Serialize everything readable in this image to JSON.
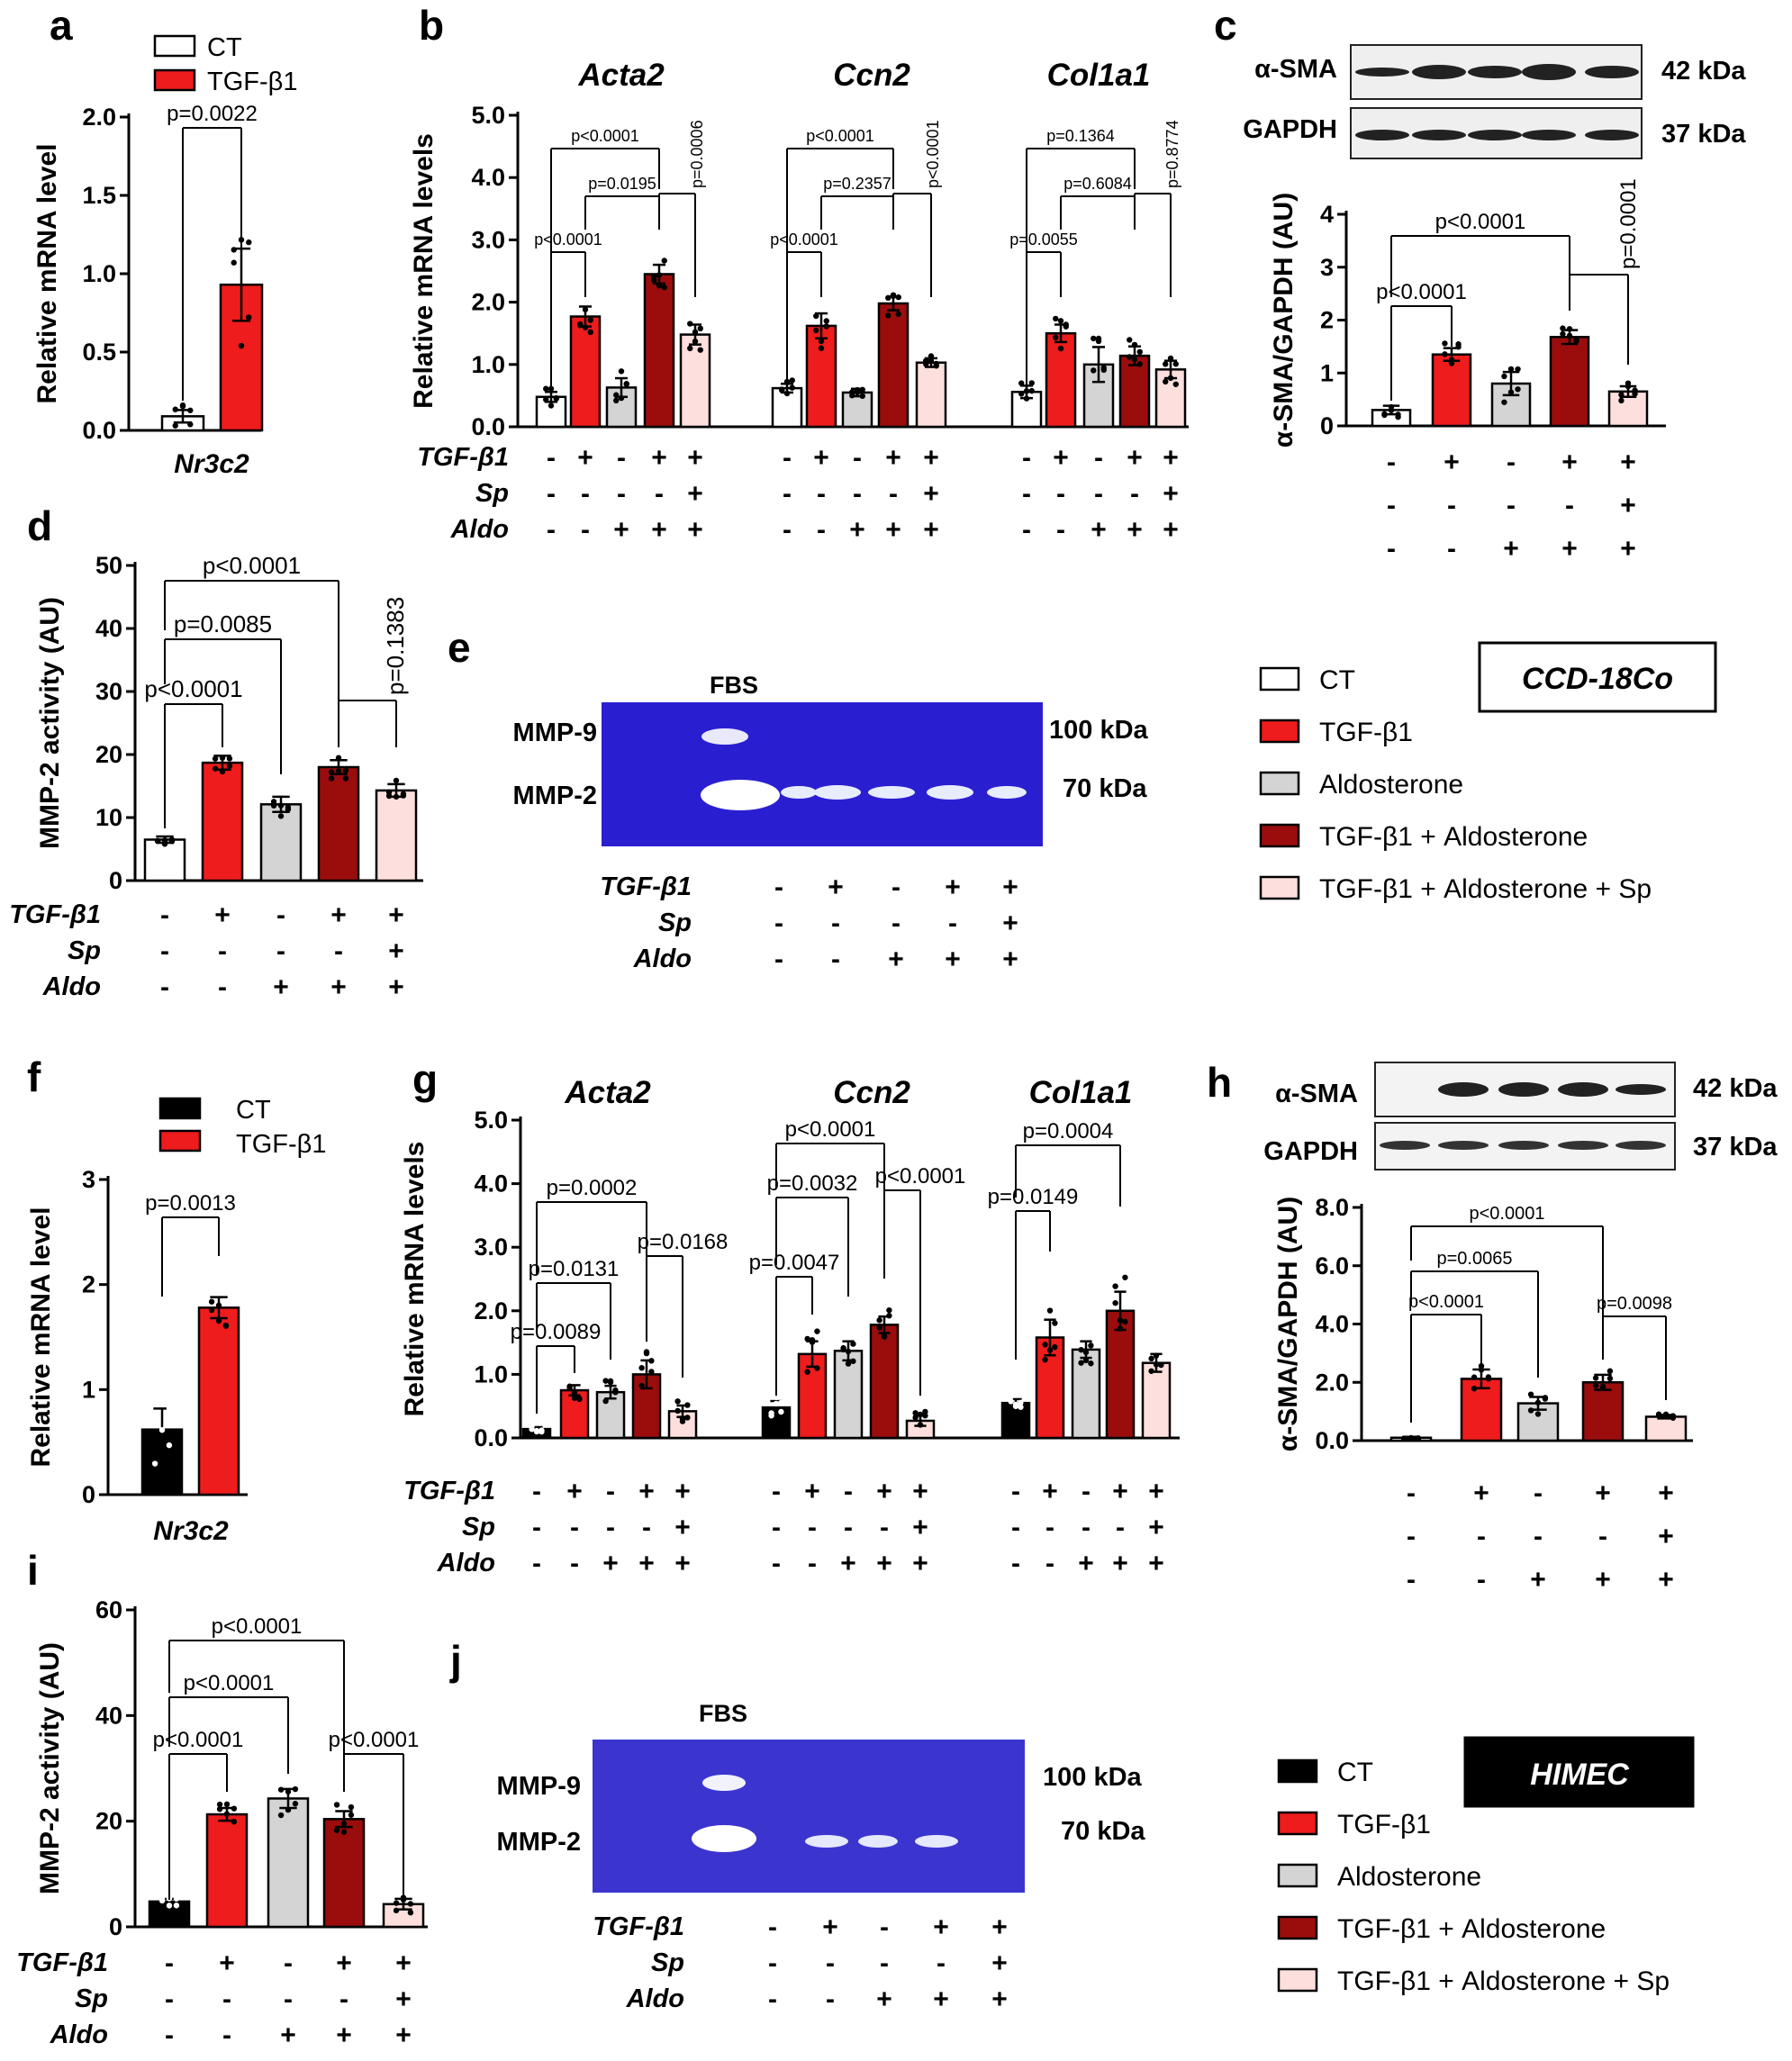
{
  "colors": {
    "CT": "#ffffff",
    "CT_dark": "#000000",
    "TGF": "#ee1c1c",
    "Aldo": "#d4d4d4",
    "TGFAldo": "#9b0d0d",
    "TGFAldoSp": "#fde0dd",
    "gel": "#2a1fd0"
  },
  "legend_ccd": {
    "items": [
      "CT",
      "TGF-β1",
      "Aldosterone",
      "TGF-β1 + Aldosterone",
      "TGF-β1 + Aldosterone + Sp"
    ],
    "cellline": "CCD-18Co"
  },
  "legend_himec": {
    "items": [
      "CT",
      "TGF-β1",
      "Aldosterone",
      "TGF-β1 + Aldosterone",
      "TGF-β1 + Aldosterone + Sp"
    ],
    "cellline": "HIMEC"
  },
  "conditions": {
    "rows": [
      "TGF-β1",
      "Sp",
      "Aldo"
    ],
    "TGF": [
      "-",
      "+",
      "-",
      "+",
      "+"
    ],
    "Sp": [
      "-",
      "-",
      "-",
      "-",
      "+"
    ],
    "Aldo": [
      "-",
      "-",
      "+",
      "+",
      "+"
    ]
  },
  "gel_e": {
    "top": "FBS",
    "band1": "MMP-9",
    "band2": "MMP-2",
    "kda1": "100 kDa",
    "kda2": "70 kDa"
  },
  "gel_j": {
    "top": "FBS",
    "band1": "MMP-9",
    "band2": "MMP-2",
    "kda1": "100 kDa",
    "kda2": "70 kDa"
  },
  "blot_c": {
    "row1": "α-SMA",
    "row2": "GAPDH",
    "kda1": "42 kDa",
    "kda2": "37 kDa"
  },
  "blot_h": {
    "row1": "α-SMA",
    "row2": "GAPDH",
    "kda1": "42 kDa",
    "kda2": "37 kDa"
  },
  "chart_data": [
    {
      "id": "a",
      "type": "bar",
      "panel_label": "a",
      "ylabel": "Relative mRNA level",
      "xlabel": "Nr3c2",
      "ylim": [
        0,
        2.0
      ],
      "yticks": [
        "0.0",
        "0.5",
        "1.0",
        "1.5",
        "2.0"
      ],
      "categories": [
        "CT",
        "TGF-β1"
      ],
      "values": [
        0.09,
        0.93
      ],
      "errors": [
        0.04,
        0.23
      ],
      "legend": [
        "CT",
        "TGF-β1"
      ],
      "annotations": [
        {
          "text": "p=0.0022",
          "from": 0,
          "to": 1
        }
      ]
    },
    {
      "id": "b",
      "type": "bar",
      "panel_label": "b",
      "ylabel": "Relative mRNA levels",
      "ylim": [
        0,
        5.0
      ],
      "yticks": [
        "0.0",
        "1.0",
        "2.0",
        "3.0",
        "4.0",
        "5.0"
      ],
      "groups": [
        {
          "name": "Acta2",
          "values": [
            0.48,
            1.77,
            0.63,
            2.45,
            1.48
          ],
          "errors": [
            0.08,
            0.16,
            0.15,
            0.15,
            0.16
          ],
          "annotations": [
            {
              "text": "p<0.0001",
              "from": 0,
              "to": 1
            },
            {
              "text": "p=0.0195",
              "from": 1,
              "to": 3
            },
            {
              "text": "p<0.0001",
              "from": 0,
              "to": 3
            },
            {
              "text": "p=0.0006",
              "from": 3,
              "to": 4,
              "rot": true
            }
          ]
        },
        {
          "name": "Ccn2",
          "values": [
            0.62,
            1.62,
            0.55,
            1.98,
            1.03
          ],
          "errors": [
            0.07,
            0.2,
            0.06,
            0.11,
            0.07
          ],
          "annotations": [
            {
              "text": "p<0.0001",
              "from": 0,
              "to": 1
            },
            {
              "text": "p=0.2357",
              "from": 1,
              "to": 3
            },
            {
              "text": "p<0.0001",
              "from": 0,
              "to": 3
            },
            {
              "text": "p<0.0001",
              "from": 3,
              "to": 4,
              "rot": true
            }
          ]
        },
        {
          "name": "Col1a1",
          "values": [
            0.56,
            1.5,
            1.0,
            1.14,
            0.92
          ],
          "errors": [
            0.1,
            0.14,
            0.28,
            0.15,
            0.14
          ],
          "annotations": [
            {
              "text": "p=0.0055",
              "from": 0,
              "to": 1
            },
            {
              "text": "p=0.6084",
              "from": 1,
              "to": 3
            },
            {
              "text": "p=0.1364",
              "from": 0,
              "to": 3
            },
            {
              "text": "p=0.8774",
              "from": 3,
              "to": 4,
              "rot": true
            }
          ]
        }
      ]
    },
    {
      "id": "c",
      "type": "bar",
      "panel_label": "c",
      "ylabel": "α-SMA/GAPDH (AU)",
      "ylim": [
        0,
        4
      ],
      "yticks": [
        "0",
        "1",
        "2",
        "3",
        "4"
      ],
      "values": [
        0.3,
        1.35,
        0.8,
        1.68,
        0.65
      ],
      "errors": [
        0.08,
        0.12,
        0.22,
        0.13,
        0.1
      ],
      "annotations": [
        {
          "text": "p<0.0001",
          "from": 0,
          "to": 1
        },
        {
          "text": "p<0.0001",
          "from": 0,
          "to": 3
        },
        {
          "text": "p=0.0001",
          "from": 3,
          "to": 4,
          "rot": true
        }
      ]
    },
    {
      "id": "d",
      "type": "bar",
      "panel_label": "d",
      "ylabel": "MMP-2 activity (AU)",
      "ylim": [
        0,
        50
      ],
      "yticks": [
        "0",
        "10",
        "20",
        "30",
        "40",
        "50"
      ],
      "values": [
        6.5,
        18.7,
        12.1,
        18.0,
        14.3
      ],
      "errors": [
        0.5,
        1.1,
        1.2,
        1.1,
        1.0
      ],
      "annotations": [
        {
          "text": "p<0.0001",
          "from": 0,
          "to": 1
        },
        {
          "text": "p=0.0085",
          "from": 0,
          "to": 2
        },
        {
          "text": "p<0.0001",
          "from": 0,
          "to": 3
        },
        {
          "text": "p=0.1383",
          "from": 3,
          "to": 4,
          "rot": true
        }
      ]
    },
    {
      "id": "f",
      "type": "bar",
      "panel_label": "f",
      "ylabel": "Relative mRNA level",
      "xlabel": "Nr3c2",
      "ylim": [
        0,
        3
      ],
      "yticks": [
        "0",
        "1",
        "2",
        "3"
      ],
      "categories": [
        "CT",
        "TGF-β1"
      ],
      "values": [
        0.62,
        1.78
      ],
      "errors": [
        0.2,
        0.1
      ],
      "legend": [
        "CT",
        "TGF-β1"
      ],
      "annotations": [
        {
          "text": "p=0.0013",
          "from": 0,
          "to": 1
        }
      ]
    },
    {
      "id": "g",
      "type": "bar",
      "panel_label": "g",
      "ylabel": "Relative mRNA levels",
      "ylim": [
        0,
        5.0
      ],
      "yticks": [
        "0.0",
        "1.0",
        "2.0",
        "3.0",
        "4.0",
        "5.0"
      ],
      "groups": [
        {
          "name": "Acta2",
          "values": [
            0.14,
            0.75,
            0.72,
            1.0,
            0.42
          ],
          "errors": [
            0.03,
            0.08,
            0.1,
            0.22,
            0.09
          ],
          "annotations": [
            {
              "text": "p=0.0089",
              "from": 0,
              "to": 1
            },
            {
              "text": "p=0.0131",
              "from": 0,
              "to": 2
            },
            {
              "text": "p=0.0002",
              "from": 0,
              "to": 3
            },
            {
              "text": "p=0.0168",
              "from": 3,
              "to": 4
            }
          ]
        },
        {
          "name": "Ccn2",
          "values": [
            0.48,
            1.32,
            1.37,
            1.78,
            0.27
          ],
          "errors": [
            0.1,
            0.2,
            0.15,
            0.13,
            0.08
          ],
          "annotations": [
            {
              "text": "p=0.0047",
              "from": 0,
              "to": 1
            },
            {
              "text": "p=0.0032",
              "from": 0,
              "to": 2
            },
            {
              "text": "p<0.0001",
              "from": 0,
              "to": 3
            },
            {
              "text": "p<0.0001",
              "from": 3,
              "to": 4
            }
          ]
        },
        {
          "name": "Col1a1",
          "values": [
            0.55,
            1.58,
            1.39,
            2.0,
            1.18
          ],
          "errors": [
            0.06,
            0.28,
            0.13,
            0.3,
            0.14
          ],
          "annotations": [
            {
              "text": "p=0.0149",
              "from": 0,
              "to": 1
            },
            {
              "text": "p=0.0004",
              "from": 0,
              "to": 3
            }
          ]
        }
      ]
    },
    {
      "id": "h",
      "type": "bar",
      "panel_label": "h",
      "ylabel": "α-SMA/GAPDH (AU)",
      "ylim": [
        0,
        8.0
      ],
      "yticks": [
        "0.0",
        "2.0",
        "4.0",
        "6.0",
        "8.0"
      ],
      "values": [
        0.1,
        2.12,
        1.28,
        2.0,
        0.82
      ],
      "errors": [
        0.03,
        0.32,
        0.22,
        0.26,
        0.06
      ],
      "annotations": [
        {
          "text": "p<0.0001",
          "from": 0,
          "to": 1
        },
        {
          "text": "p=0.0065",
          "from": 0,
          "to": 2
        },
        {
          "text": "p<0.0001",
          "from": 0,
          "to": 3
        },
        {
          "text": "p=0.0098",
          "from": 3,
          "to": 4
        }
      ]
    },
    {
      "id": "i",
      "type": "bar",
      "panel_label": "i",
      "ylabel": "MMP-2 activity (AU)",
      "ylim": [
        0,
        60
      ],
      "yticks": [
        "0",
        "20",
        "40",
        "60"
      ],
      "values": [
        4.8,
        21.3,
        24.3,
        20.4,
        4.3
      ],
      "errors": [
        0.5,
        1.2,
        1.8,
        1.5,
        1.0
      ],
      "annotations": [
        {
          "text": "p<0.0001",
          "from": 0,
          "to": 1
        },
        {
          "text": "p<0.0001",
          "from": 0,
          "to": 2
        },
        {
          "text": "p<0.0001",
          "from": 0,
          "to": 3
        },
        {
          "text": "p<0.0001",
          "from": 3,
          "to": 4
        }
      ]
    }
  ],
  "panel_labels": {
    "e": "e",
    "j": "j"
  }
}
